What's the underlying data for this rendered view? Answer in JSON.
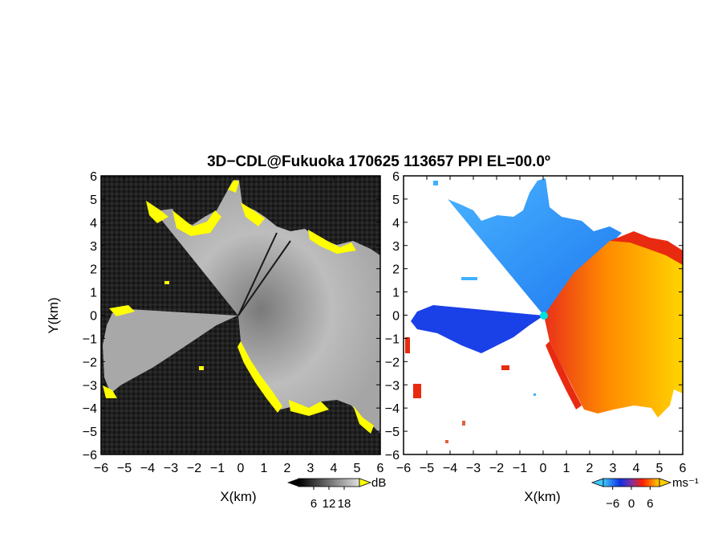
{
  "title": "3D−CDL@Fukuoka 170625 113657 PPI EL=00.0º",
  "chart_data": [
    {
      "type": "heatmap",
      "panel": "reflectivity",
      "xlabel": "X(km)",
      "ylabel": "Y(km)",
      "xlim": [
        -6,
        6
      ],
      "ylim": [
        -6,
        6
      ],
      "x_ticks": [
        "−6",
        "−5",
        "−4",
        "−3",
        "−2",
        "−1",
        "0",
        "1",
        "2",
        "3",
        "4",
        "5",
        "6"
      ],
      "y_ticks": [
        "6",
        "5",
        "4",
        "3",
        "2",
        "1",
        "0",
        "−1",
        "−2",
        "−3",
        "−4",
        "−5",
        "−6"
      ],
      "colormap": "grayscale",
      "colorbar": {
        "unit": "dB",
        "ticks": [
          "6",
          "12",
          "18"
        ],
        "range": [
          0,
          24
        ],
        "high_color": "#ffff00"
      },
      "colors": {
        "background": "#1a1a1a",
        "echo": "#b0b0b0",
        "edge": "#ffff00"
      }
    },
    {
      "type": "heatmap",
      "panel": "doppler_velocity",
      "xlabel": "X(km)",
      "ylabel": "",
      "xlim": [
        -6,
        6
      ],
      "ylim": [
        -6,
        6
      ],
      "x_ticks": [
        "−6",
        "−5",
        "−4",
        "−3",
        "−2",
        "−1",
        "0",
        "1",
        "2",
        "3",
        "4",
        "5",
        "6"
      ],
      "y_ticks": [
        "6",
        "5",
        "4",
        "3",
        "2",
        "1",
        "0",
        "−1",
        "−2",
        "−3",
        "−4",
        "−5",
        "−6"
      ],
      "colormap": "diverging",
      "colorbar": {
        "unit": "ms⁻¹",
        "ticks": [
          "−6",
          "0",
          "6"
        ],
        "range": [
          -9,
          9
        ]
      },
      "colors": {
        "negative_light": "#3fb0ff",
        "negative_dark": "#1a40e8",
        "positive_dark": "#e82a10",
        "positive_light": "#ffd000",
        "near_zero": "#00e0e0"
      }
    }
  ]
}
